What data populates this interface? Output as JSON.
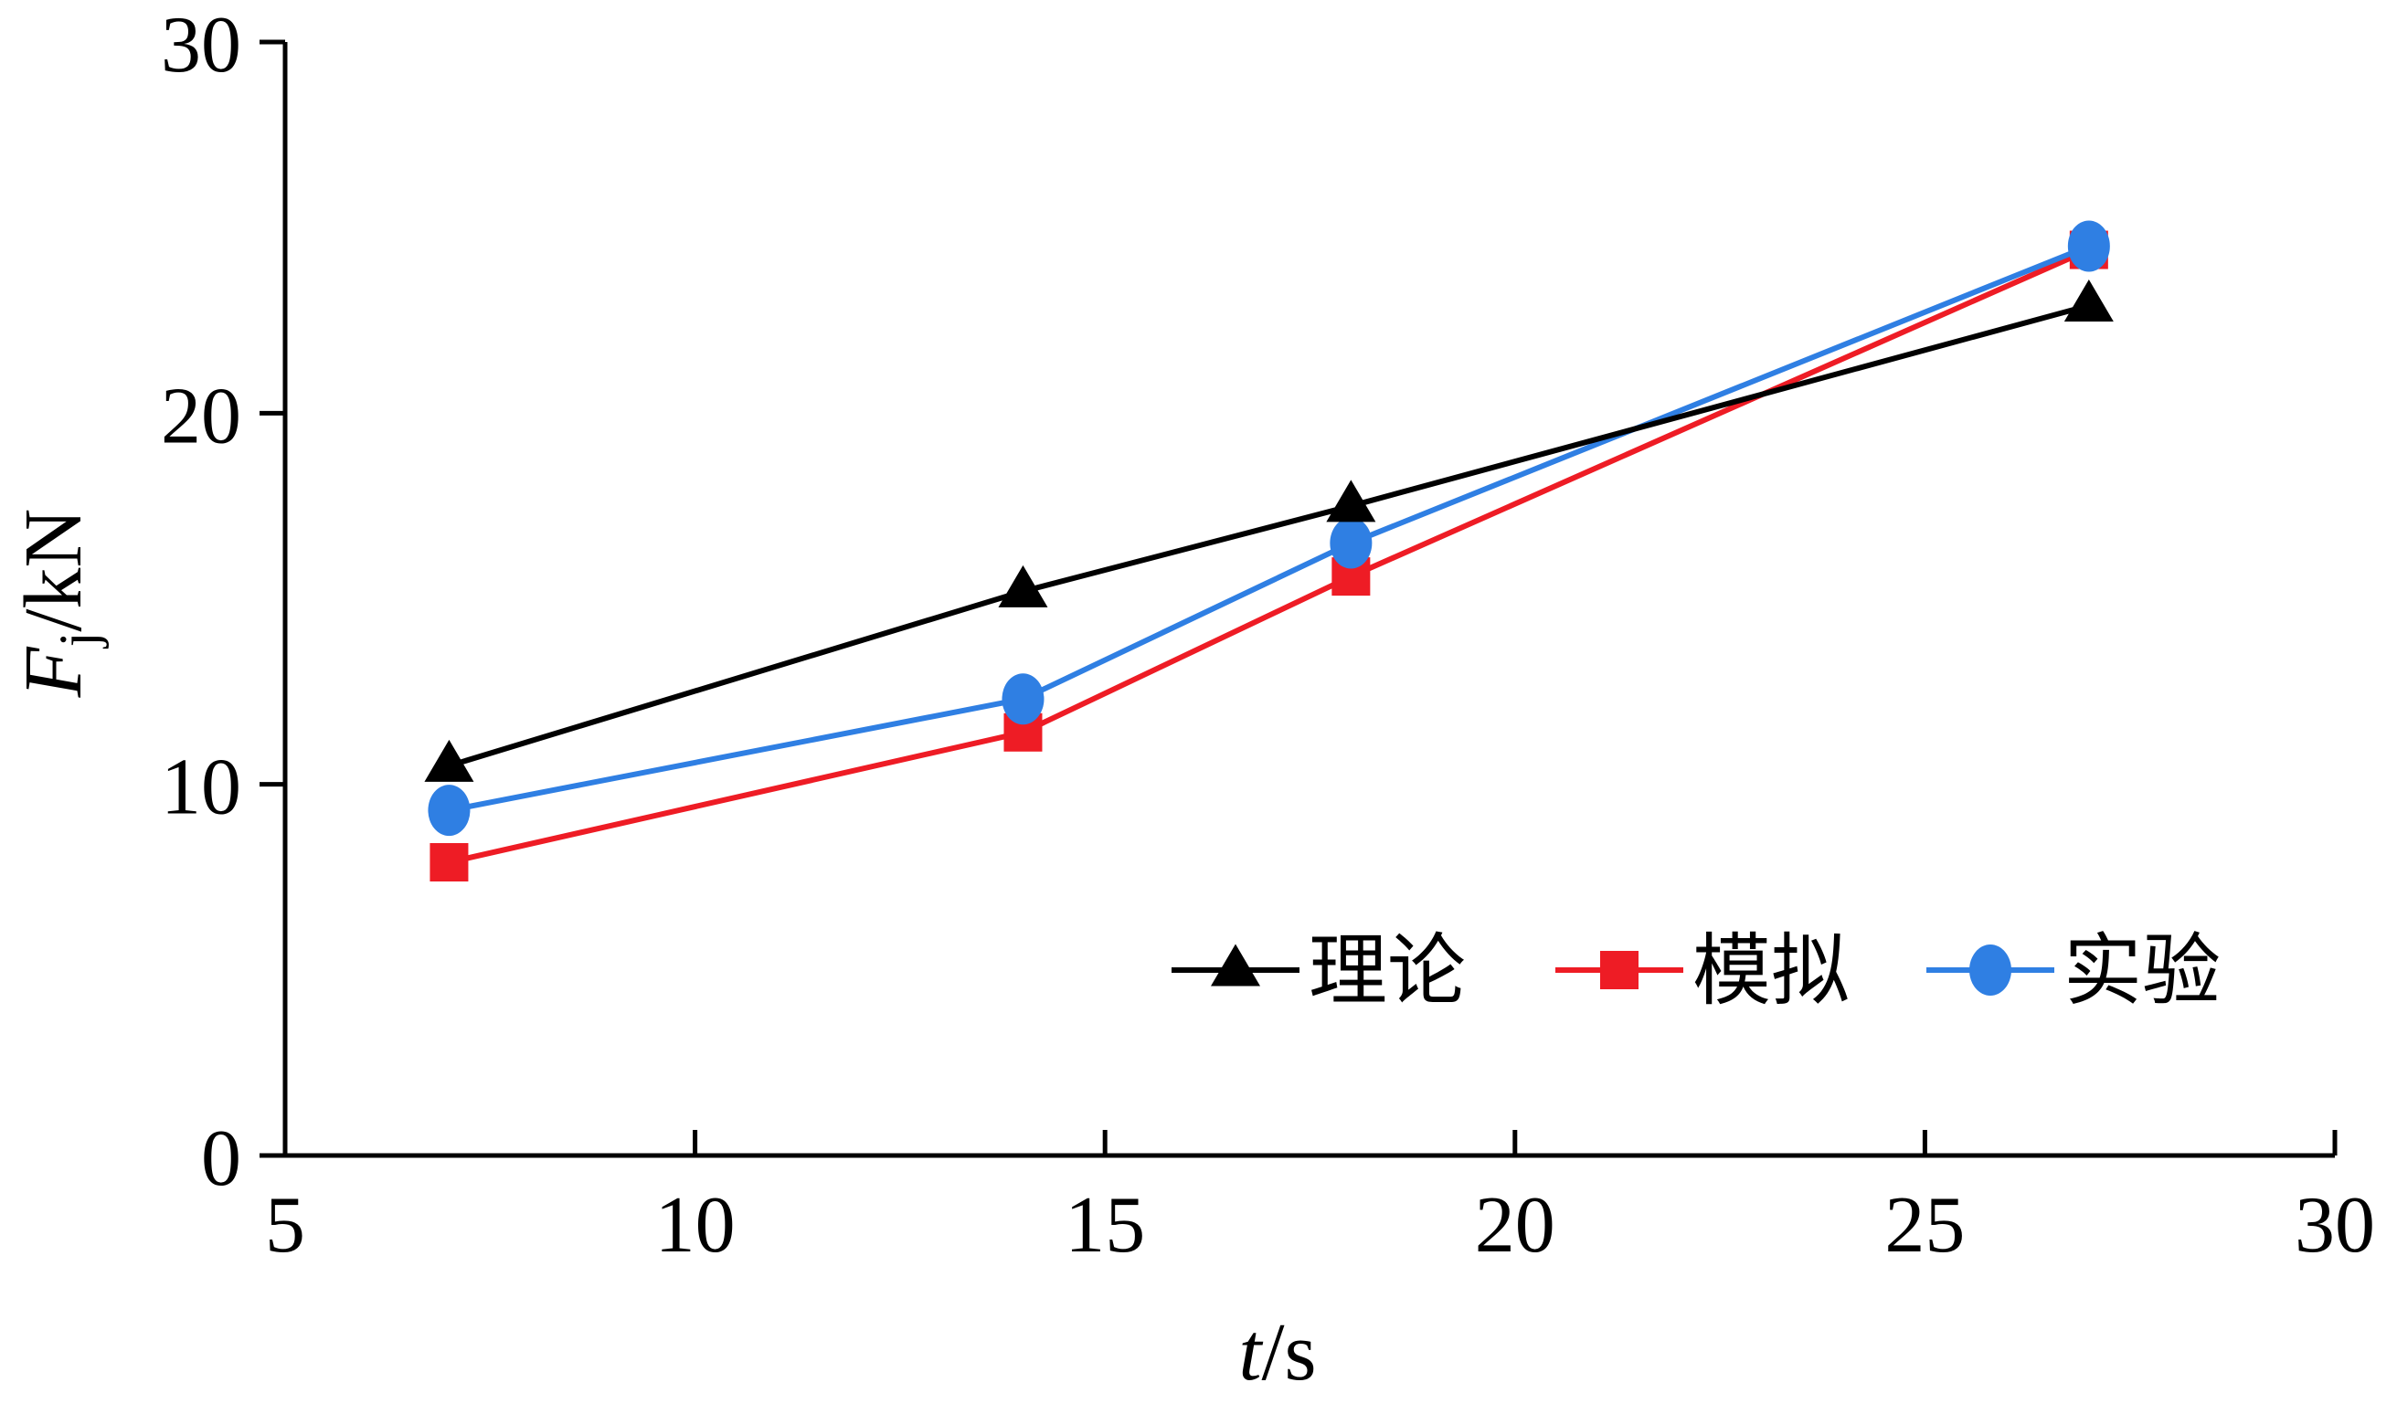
{
  "chart_data": {
    "type": "line",
    "x": [
      7,
      14,
      18,
      27
    ],
    "xlim": [
      5,
      30
    ],
    "ylim": [
      0,
      30
    ],
    "xticks": [
      "5",
      "10",
      "15",
      "20",
      "25",
      "30"
    ],
    "yticks": [
      "0",
      "10",
      "20",
      "30"
    ],
    "xlabel": {
      "var": "t",
      "unit": "/s"
    },
    "ylabel": {
      "var": "F",
      "sub": "j",
      "unit": "/kN"
    },
    "legend_position": "bottom-right",
    "grid": false,
    "series": [
      {
        "name": "理论",
        "color": "#000000",
        "marker": "triangle",
        "values": [
          10.5,
          15.2,
          17.5,
          22.9
        ]
      },
      {
        "name": "模拟",
        "color": "#ee1c25",
        "marker": "square",
        "values": [
          7.9,
          11.4,
          15.6,
          24.4
        ]
      },
      {
        "name": "实验",
        "color": "#2f7fe3",
        "marker": "circle",
        "values": [
          9.3,
          12.3,
          16.5,
          24.5
        ]
      }
    ]
  }
}
